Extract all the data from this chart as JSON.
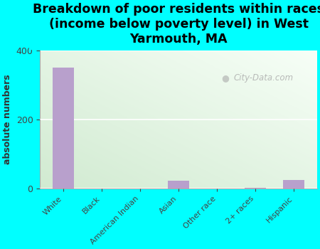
{
  "title": "Breakdown of poor residents within races\n(income below poverty level) in West\nYarmouth, MA",
  "categories": [
    "White",
    "Black",
    "American Indian",
    "Asian",
    "Other race",
    "2+ races",
    "Hispanic"
  ],
  "values": [
    350,
    0,
    0,
    22,
    0,
    2,
    25
  ],
  "bar_color": "#b8a0cc",
  "ylabel": "absolute numbers",
  "ylim": [
    0,
    400
  ],
  "yticks": [
    0,
    200,
    400
  ],
  "background_color": "#00ffff",
  "grad_top_left": "#e8f5e0",
  "grad_top_right": "#c8e8d0",
  "grad_bottom": "#f8fef4",
  "watermark": "City-Data.com",
  "title_fontsize": 12.5,
  "axis_label_fontsize": 9,
  "tick_fontsize": 8
}
